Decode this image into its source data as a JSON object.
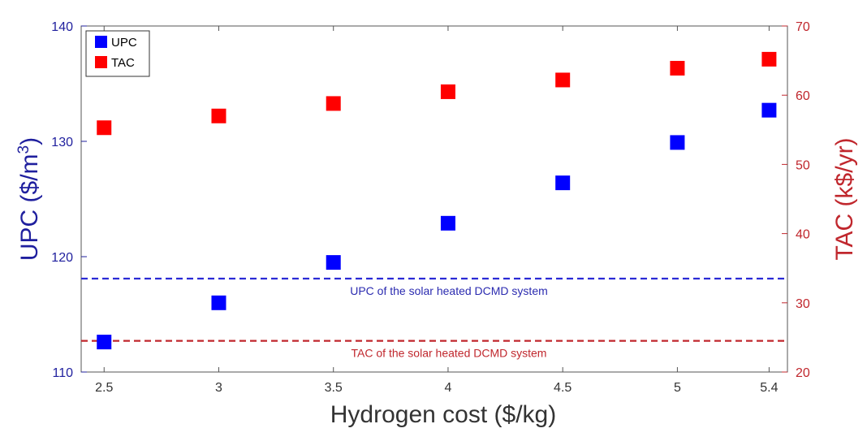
{
  "chart_data": {
    "type": "scatter",
    "xlabel": "Hydrogen cost ($/kg)",
    "x": [
      2.5,
      3,
      3.5,
      4,
      4.5,
      5,
      5.4
    ],
    "x_ticks": [
      "2.5",
      "3",
      "3.5",
      "4",
      "4.5",
      "5",
      "5.4"
    ],
    "xlim": [
      2.4,
      5.48
    ],
    "y_left": {
      "label_main": "UPC ($/m",
      "label_sup": "3",
      "label_close": ")",
      "ylim": [
        110,
        140
      ],
      "ticks": [
        "110",
        "120",
        "130",
        "140"
      ],
      "color": "#1f1f9e"
    },
    "y_right": {
      "label": "TAC (k$/yr)",
      "ylim": [
        20,
        70
      ],
      "ticks": [
        "20",
        "30",
        "40",
        "50",
        "60",
        "70"
      ],
      "color": "#c0272d"
    },
    "series": [
      {
        "name": "UPC",
        "axis": "left",
        "color": "#0000ff",
        "values": [
          112.6,
          116.0,
          119.5,
          122.9,
          126.4,
          129.9,
          132.7
        ]
      },
      {
        "name": "TAC",
        "axis": "right",
        "color": "#ff0000",
        "values": [
          55.3,
          57.0,
          58.8,
          60.5,
          62.2,
          63.9,
          65.2
        ]
      }
    ],
    "reference_lines": [
      {
        "axis": "left",
        "value": 118.1,
        "color": "#2b2bd6",
        "text_color": "#2b2bb0",
        "label": "UPC of the solar heated DCMD system"
      },
      {
        "axis": "right",
        "value": 24.5,
        "color": "#c0272d",
        "text_color": "#c0272d",
        "label": "TAC of the solar heated DCMD system"
      }
    ],
    "legend": {
      "position": "top-left",
      "entries": [
        "UPC",
        "TAC"
      ]
    }
  }
}
